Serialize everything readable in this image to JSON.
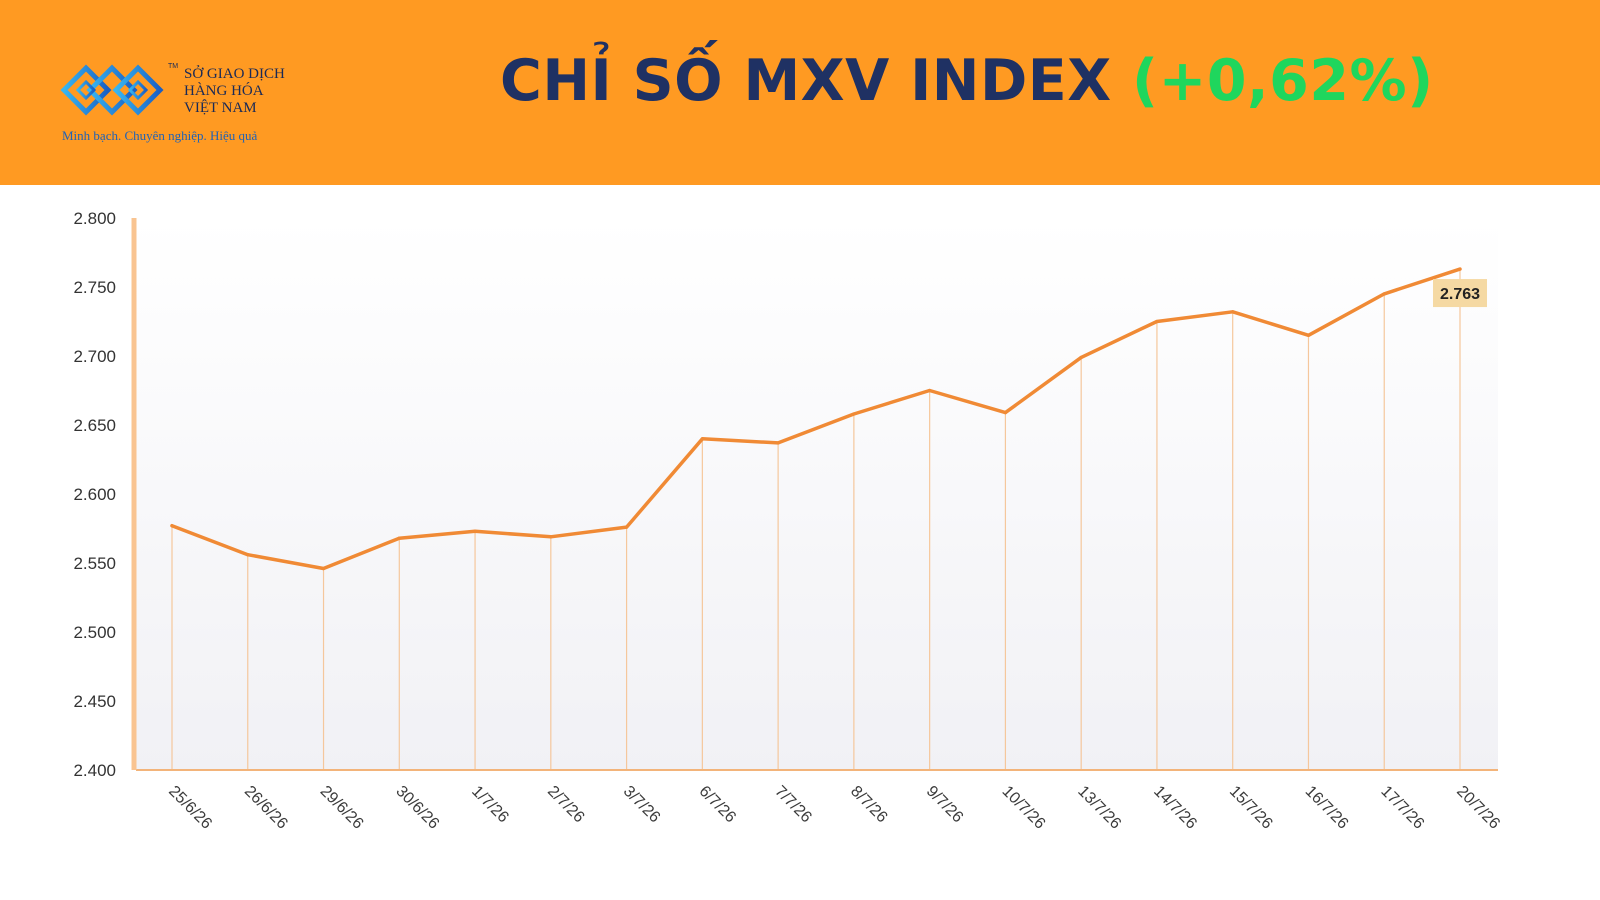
{
  "header": {
    "title": "CHỈ SỐ MXV INDEX",
    "change": "(+0,62%)",
    "colors": {
      "background": "#FF9A22",
      "title": "#1f3163",
      "change": "#1fd65d"
    }
  },
  "logo": {
    "name_lines": [
      "SỞ GIAO DỊCH",
      "HÀNG HÓA",
      "VIỆT NAM"
    ],
    "tm": "TM",
    "slogan": "Minh bạch. Chuyên nghiệp. Hiệu quả"
  },
  "chart_data": {
    "type": "line",
    "x": [
      "25/6/26",
      "26/6/26",
      "29/6/26",
      "30/6/26",
      "1/7/26",
      "2/7/26",
      "3/7/26",
      "6/7/26",
      "7/7/26",
      "8/7/26",
      "9/7/26",
      "10/7/26",
      "13/7/26",
      "14/7/26",
      "15/7/26",
      "16/7/26",
      "17/7/26",
      "20/7/26"
    ],
    "values": [
      2577,
      2556,
      2546,
      2568,
      2573,
      2569,
      2576,
      2640,
      2637,
      2658,
      2675,
      2659,
      2699,
      2725,
      2732,
      2715,
      2745,
      2763
    ],
    "ylim": [
      2400,
      2800
    ],
    "yticks": [
      2400,
      2450,
      2500,
      2550,
      2600,
      2650,
      2700,
      2750,
      2800
    ],
    "ytick_labels": [
      "2.400",
      "2.450",
      "2.500",
      "2.550",
      "2.600",
      "2.650",
      "2.700",
      "2.750",
      "2.800"
    ],
    "last_label": "2.763",
    "line_color": "#F08A35",
    "drop_line_color": "#F5C79C",
    "label_bg": "#F5D9A3",
    "grid": false
  }
}
